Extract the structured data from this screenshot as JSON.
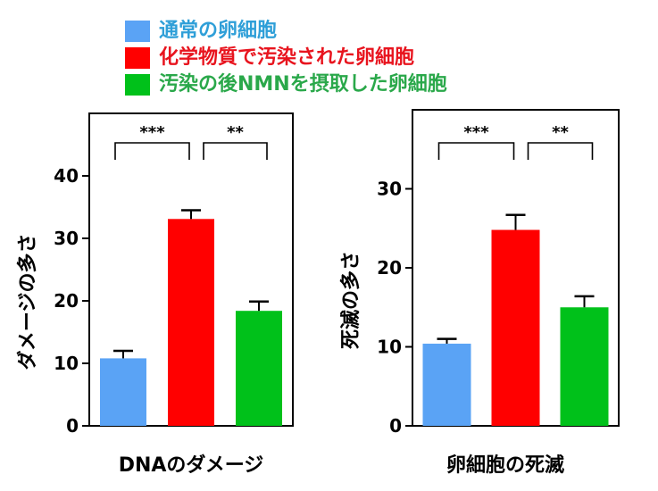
{
  "legend": {
    "items": [
      {
        "label": "通常の卵細胞",
        "color": "#5aa3f5",
        "text_color": "#2f9fd8"
      },
      {
        "label": "化学物質で汚染された卵細胞",
        "color": "#ff0000",
        "text_color": "#e8141e"
      },
      {
        "label": "汚染の後NMNを摂取した卵細胞",
        "color": "#00c11a",
        "text_color": "#2aa84a"
      }
    ]
  },
  "chart_data": [
    {
      "type": "bar",
      "xlabel": "DNAのダメージ",
      "ylabel": "ダメージの多さ",
      "ylim": [
        0,
        50
      ],
      "yticks": [
        0,
        10,
        20,
        30,
        40
      ],
      "grid": false,
      "legend_position": "top",
      "categories": [
        "通常の卵細胞",
        "化学物質で汚染された卵細胞",
        "汚染の後NMNを摂取した卵細胞"
      ],
      "values": [
        10.8,
        33.1,
        18.4
      ],
      "errors": [
        1.2,
        1.4,
        1.5
      ],
      "significance": [
        {
          "from": 0,
          "to": 1,
          "label": "***"
        },
        {
          "from": 1,
          "to": 2,
          "label": "**"
        }
      ]
    },
    {
      "type": "bar",
      "xlabel": "卵細胞の死滅",
      "ylabel": "死滅の多さ",
      "ylim": [
        0,
        40
      ],
      "yticks": [
        0,
        10,
        20,
        30
      ],
      "grid": false,
      "legend_position": "top",
      "categories": [
        "通常の卵細胞",
        "化学物質で汚染された卵細胞",
        "汚染の後NMNを摂取した卵細胞"
      ],
      "values": [
        10.4,
        24.8,
        15.0
      ],
      "errors": [
        0.6,
        1.9,
        1.4
      ],
      "significance": [
        {
          "from": 0,
          "to": 1,
          "label": "***"
        },
        {
          "from": 1,
          "to": 2,
          "label": "**"
        }
      ]
    }
  ]
}
